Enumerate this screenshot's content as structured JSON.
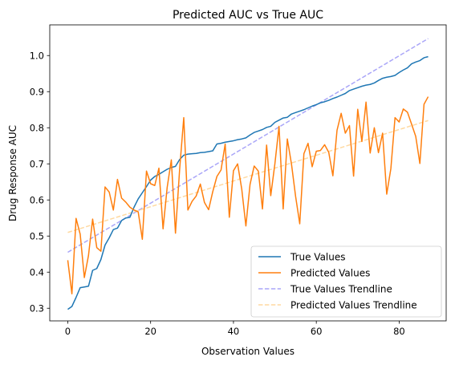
{
  "chart_data": {
    "type": "line",
    "title": "Predicted AUC vs True AUC",
    "xlabel": "Observation Values",
    "ylabel": "Drug Response AUC",
    "xlim": [
      -4.35,
      91.35
    ],
    "ylim": [
      0.265,
      1.085
    ],
    "x_ticks": [
      0,
      20,
      40,
      60,
      80
    ],
    "y_ticks": [
      0.3,
      0.4,
      0.5,
      0.6,
      0.7,
      0.8,
      0.9,
      1.0
    ],
    "x_tick_labels": [
      "0",
      "20",
      "40",
      "60",
      "80"
    ],
    "y_tick_labels": [
      "0.3",
      "0.4",
      "0.5",
      "0.6",
      "0.7",
      "0.8",
      "0.9",
      "1.0"
    ],
    "grid": false,
    "legend_position": "lower-right",
    "series": [
      {
        "name": "True Values",
        "color": "#1f77b4",
        "style": "solid",
        "x": [
          0,
          1,
          2,
          3,
          4,
          5,
          6,
          7,
          8,
          9,
          10,
          11,
          12,
          13,
          14,
          15,
          16,
          17,
          18,
          19,
          20,
          21,
          22,
          23,
          24,
          25,
          26,
          27,
          28,
          29,
          30,
          31,
          32,
          33,
          34,
          35,
          36,
          37,
          38,
          39,
          40,
          41,
          42,
          43,
          44,
          45,
          46,
          47,
          48,
          49,
          50,
          51,
          52,
          53,
          54,
          55,
          56,
          57,
          58,
          59,
          60,
          61,
          62,
          63,
          64,
          65,
          66,
          67,
          68,
          69,
          70,
          71,
          72,
          73,
          74,
          75,
          76,
          77,
          78,
          79,
          80,
          81,
          82,
          83,
          84,
          85,
          86,
          87
        ],
        "values": [
          0.297,
          0.305,
          0.33,
          0.357,
          0.359,
          0.361,
          0.405,
          0.41,
          0.435,
          0.475,
          0.495,
          0.518,
          0.522,
          0.543,
          0.55,
          0.552,
          0.58,
          0.603,
          0.62,
          0.637,
          0.655,
          0.665,
          0.671,
          0.678,
          0.685,
          0.69,
          0.693,
          0.712,
          0.724,
          0.727,
          0.728,
          0.729,
          0.731,
          0.732,
          0.734,
          0.736,
          0.755,
          0.757,
          0.76,
          0.762,
          0.764,
          0.767,
          0.769,
          0.772,
          0.78,
          0.787,
          0.791,
          0.795,
          0.801,
          0.804,
          0.815,
          0.821,
          0.827,
          0.829,
          0.838,
          0.842,
          0.846,
          0.85,
          0.855,
          0.86,
          0.864,
          0.869,
          0.872,
          0.876,
          0.881,
          0.885,
          0.89,
          0.895,
          0.903,
          0.907,
          0.911,
          0.915,
          0.918,
          0.92,
          0.924,
          0.931,
          0.937,
          0.94,
          0.942,
          0.945,
          0.953,
          0.96,
          0.966,
          0.977,
          0.982,
          0.986,
          0.994,
          0.997
        ]
      },
      {
        "name": "Predicted Values",
        "color": "#ff7f0e",
        "style": "solid",
        "x": [
          0,
          1,
          2,
          3,
          4,
          5,
          6,
          7,
          8,
          9,
          10,
          11,
          12,
          13,
          14,
          15,
          16,
          17,
          18,
          19,
          20,
          21,
          22,
          23,
          24,
          25,
          26,
          27,
          28,
          29,
          30,
          31,
          32,
          33,
          34,
          35,
          36,
          37,
          38,
          39,
          40,
          41,
          42,
          43,
          44,
          45,
          46,
          47,
          48,
          49,
          50,
          51,
          52,
          53,
          54,
          55,
          56,
          57,
          58,
          59,
          60,
          61,
          62,
          63,
          64,
          65,
          66,
          67,
          68,
          69,
          70,
          71,
          72,
          73,
          74,
          75,
          76,
          77,
          78,
          79,
          80,
          81,
          82,
          83,
          84,
          85,
          86,
          87
        ],
        "values": [
          0.433,
          0.34,
          0.549,
          0.505,
          0.385,
          0.446,
          0.547,
          0.468,
          0.458,
          0.636,
          0.622,
          0.572,
          0.657,
          0.605,
          0.594,
          0.58,
          0.572,
          0.567,
          0.491,
          0.68,
          0.645,
          0.64,
          0.688,
          0.52,
          0.635,
          0.711,
          0.508,
          0.684,
          0.828,
          0.572,
          0.596,
          0.611,
          0.644,
          0.593,
          0.573,
          0.623,
          0.665,
          0.683,
          0.755,
          0.552,
          0.681,
          0.7,
          0.63,
          0.528,
          0.643,
          0.694,
          0.68,
          0.575,
          0.752,
          0.612,
          0.7,
          0.804,
          0.575,
          0.769,
          0.7,
          0.61,
          0.534,
          0.728,
          0.757,
          0.692,
          0.735,
          0.737,
          0.753,
          0.732,
          0.667,
          0.793,
          0.84,
          0.785,
          0.806,
          0.666,
          0.851,
          0.762,
          0.871,
          0.73,
          0.8,
          0.731,
          0.785,
          0.616,
          0.687,
          0.828,
          0.816,
          0.852,
          0.843,
          0.81,
          0.776,
          0.701,
          0.865,
          0.886
        ]
      },
      {
        "name": "True Values Trendline",
        "color": "#aaa6f8",
        "style": "dashed",
        "x": [
          0,
          87
        ],
        "values": [
          0.455,
          1.047
        ]
      },
      {
        "name": "Predicted Values Trendline",
        "color": "#ffd9a0",
        "style": "dashed",
        "x": [
          0,
          87
        ],
        "values": [
          0.51,
          0.82
        ]
      }
    ]
  }
}
